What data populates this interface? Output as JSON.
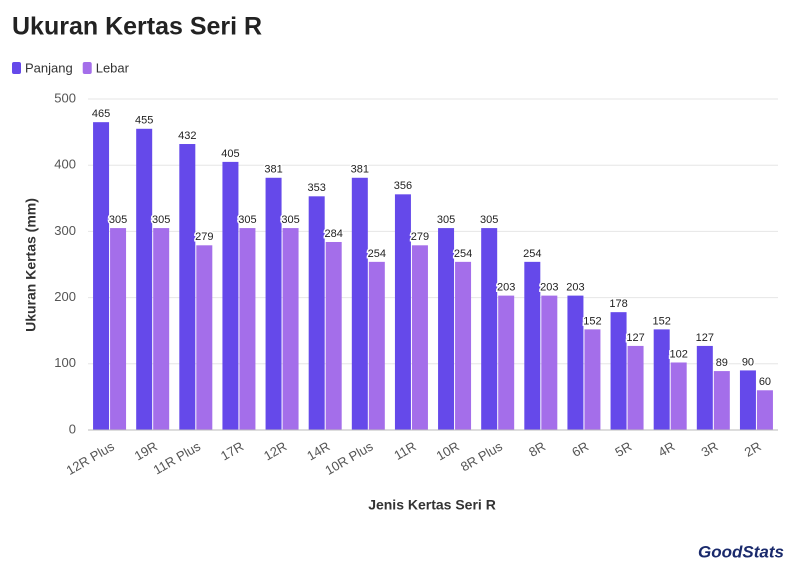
{
  "chart_data": {
    "type": "bar",
    "title": "Ukuran Kertas Seri R",
    "x_label": "Jenis Kertas Seri R",
    "y_label": "Ukuran Kertas (mm)",
    "categories": [
      "12R Plus",
      "19R",
      "11R Plus",
      "17R",
      "12R",
      "14R",
      "10R Plus",
      "11R",
      "10R",
      "8R Plus",
      "8R",
      "6R",
      "5R",
      "4R",
      "3R",
      "2R"
    ],
    "series": [
      {
        "name": "Panjang",
        "color": "#6549ea",
        "values": [
          465,
          455,
          432,
          405,
          381,
          353,
          381,
          356,
          305,
          305,
          254,
          203,
          178,
          152,
          127,
          90
        ]
      },
      {
        "name": "Lebar",
        "color": "#a46eea",
        "values": [
          305,
          305,
          279,
          305,
          305,
          284,
          254,
          279,
          254,
          203,
          203,
          152,
          127,
          102,
          89,
          60
        ]
      }
    ],
    "ylim": [
      0,
      500
    ],
    "yticks": [
      0,
      100,
      200,
      300,
      400,
      500
    ],
    "grid": true,
    "legend": "top-left",
    "branding": "GoodStats"
  }
}
